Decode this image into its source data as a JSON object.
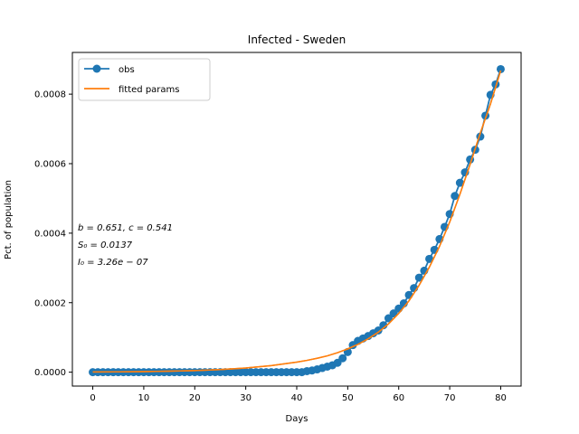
{
  "chart_data": {
    "type": "line",
    "title": "Infected - Sweden",
    "xlabel": "Days",
    "ylabel": "Pct. of population",
    "xlim": [
      -4,
      84
    ],
    "ylim": [
      -4e-05,
      0.00092
    ],
    "x_ticks": [
      0,
      10,
      20,
      30,
      40,
      50,
      60,
      70,
      80
    ],
    "y_ticks": [
      0.0,
      0.0002,
      0.0004,
      0.0006,
      0.0008
    ],
    "x_tick_labels": [
      "0",
      "10",
      "20",
      "30",
      "40",
      "50",
      "60",
      "70",
      "80"
    ],
    "y_tick_labels": [
      "0.0000",
      "0.0002",
      "0.0004",
      "0.0006",
      "0.0008"
    ],
    "legend_position": "top-left",
    "grid": false,
    "annotation": [
      "b = 0.651, c = 0.541",
      "S₀ = 0.0137",
      "I₀ = 3.26e − 07"
    ],
    "series": [
      {
        "name": "obs",
        "style": "line-marker",
        "color": "#1f77b4",
        "x": [
          0,
          1,
          2,
          3,
          4,
          5,
          6,
          7,
          8,
          9,
          10,
          11,
          12,
          13,
          14,
          15,
          16,
          17,
          18,
          19,
          20,
          21,
          22,
          23,
          24,
          25,
          26,
          27,
          28,
          29,
          30,
          31,
          32,
          33,
          34,
          35,
          36,
          37,
          38,
          39,
          40,
          41,
          42,
          43,
          44,
          45,
          46,
          47,
          48,
          49,
          50,
          51,
          52,
          53,
          54,
          55,
          56,
          57,
          58,
          59,
          60,
          61,
          62,
          63,
          64,
          65,
          66,
          67,
          68,
          69,
          70,
          71,
          72,
          73,
          74,
          75,
          76,
          77,
          78,
          79,
          80
        ],
        "y": [
          0,
          0,
          0,
          0,
          0,
          0,
          0,
          0,
          0,
          0,
          0,
          0,
          0,
          0,
          0,
          0,
          0,
          0,
          0,
          0,
          0,
          0,
          0,
          0,
          0,
          0,
          0,
          0,
          0,
          0,
          0,
          0,
          0,
          0,
          0,
          0,
          0,
          0,
          0,
          0,
          0,
          0,
          3e-06,
          5e-06,
          8e-06,
          1.2e-05,
          1.6e-05,
          2e-05,
          2.7e-05,
          4e-05,
          5.8e-05,
          7.8e-05,
          9e-05,
          9.7e-05,
          0.000104,
          0.000112,
          0.00012,
          0.000135,
          0.000155,
          0.000169,
          0.000183,
          0.000198,
          0.000222,
          0.000242,
          0.000272,
          0.000292,
          0.000326,
          0.000352,
          0.000383,
          0.000418,
          0.000455,
          0.000507,
          0.000545,
          0.000575,
          0.000612,
          0.00064,
          0.000678,
          0.000738,
          0.000798,
          0.000828,
          0.000872
        ]
      },
      {
        "name": "fitted params",
        "style": "line",
        "color": "#ff7f0e",
        "x": [
          0,
          5,
          10,
          15,
          20,
          25,
          30,
          35,
          40,
          42,
          44,
          46,
          48,
          50,
          52,
          54,
          56,
          58,
          60,
          62,
          64,
          66,
          68,
          70,
          72,
          74,
          76,
          78,
          80
        ],
        "y": [
          5e-07,
          1e-06,
          1.7e-06,
          2.8e-06,
          4.5e-06,
          7.5e-06,
          1.2e-05,
          1.9e-05,
          2.9e-05,
          3.4e-05,
          4e-05,
          4.7e-05,
          5.6e-05,
          6.7e-05,
          8e-05,
          9.6e-05,
          0.000115,
          0.000139,
          0.000169,
          0.000205,
          0.00025,
          0.000302,
          0.000362,
          0.000432,
          0.000512,
          0.000598,
          0.000688,
          0.000772,
          0.000868
        ]
      }
    ]
  }
}
